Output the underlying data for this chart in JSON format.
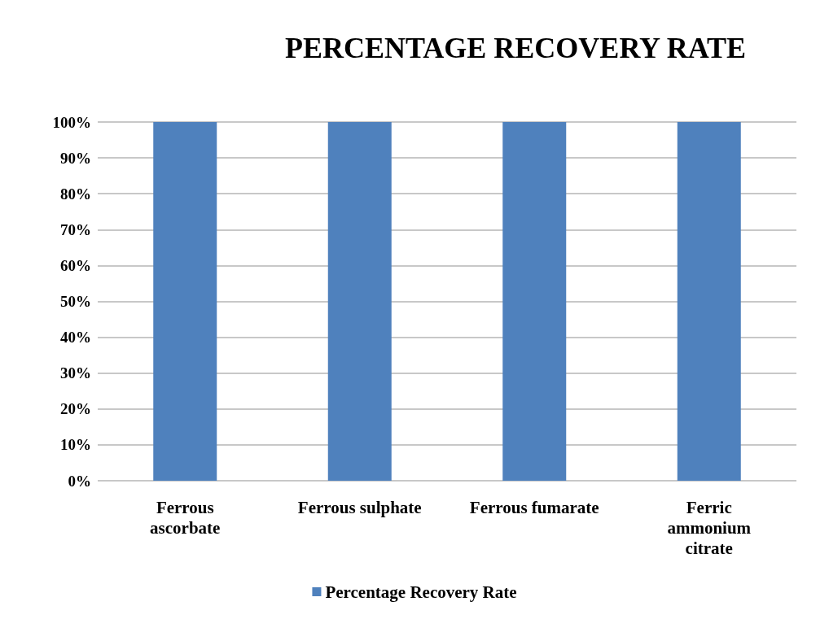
{
  "chart_data": {
    "type": "bar",
    "title": "PERCENTAGE RECOVERY RATE",
    "categories": [
      "Ferrous\nascorbate",
      "Ferrous sulphate",
      "Ferrous fumarate",
      "Ferric\nammonium\ncitrate"
    ],
    "series": [
      {
        "name": "Percentage Recovery Rate",
        "color": "#4f81bd",
        "values": [
          100,
          100,
          100,
          100
        ]
      }
    ],
    "ylim": [
      0,
      100
    ],
    "yticks": [
      {
        "value": 0,
        "label": "0%"
      },
      {
        "value": 10,
        "label": "10%"
      },
      {
        "value": 20,
        "label": "20%"
      },
      {
        "value": 30,
        "label": "30%"
      },
      {
        "value": 40,
        "label": "40%"
      },
      {
        "value": 50,
        "label": "50%"
      },
      {
        "value": 60,
        "label": "60%"
      },
      {
        "value": 70,
        "label": "70%"
      },
      {
        "value": 80,
        "label": "80%"
      },
      {
        "value": 90,
        "label": "90%"
      },
      {
        "value": 100,
        "label": "100%"
      }
    ],
    "grid": "y",
    "legend": "bottom"
  }
}
